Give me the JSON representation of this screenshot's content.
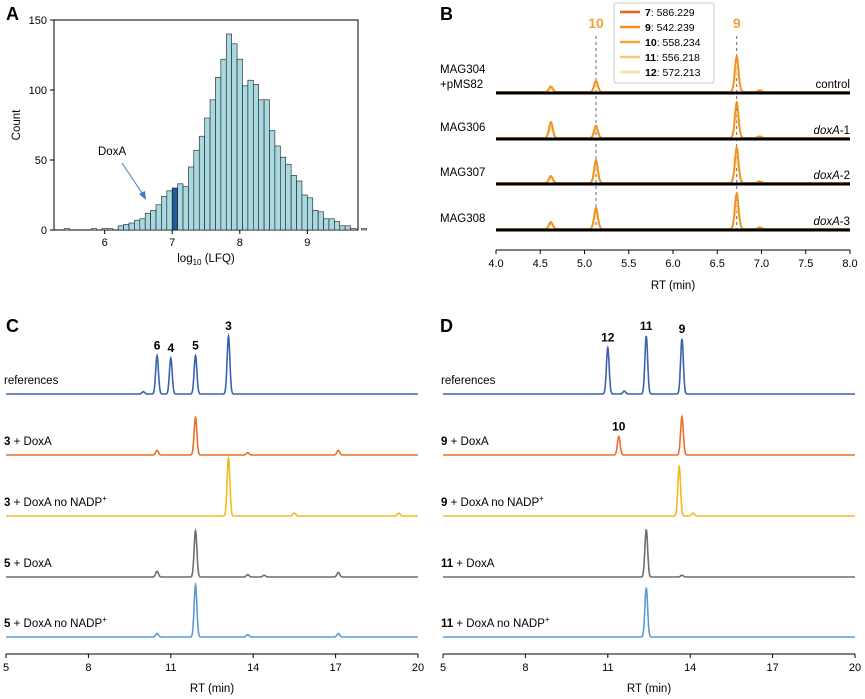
{
  "panels": {
    "A": "A",
    "B": "B",
    "C": "C",
    "D": "D"
  },
  "chart_data": [
    {
      "panel": "A",
      "type": "bar",
      "title": "",
      "xlabel": "log10 (LFQ)",
      "xlabel_main": "log",
      "xlabel_sub": "10",
      "xlabel_rest": " (LFQ)",
      "ylabel": "Count",
      "xlim": [
        5.25,
        9.75
      ],
      "ylim": [
        0,
        150
      ],
      "xticks": [
        "6",
        "7",
        "8",
        "9"
      ],
      "yticks": [
        "0",
        "50",
        "100",
        "150"
      ],
      "bin_start": 5.4,
      "bin_width": 0.08,
      "values": [
        1,
        0,
        0,
        0,
        0,
        1,
        0,
        1,
        1,
        0,
        3,
        4,
        5,
        7,
        8,
        12,
        14,
        18,
        24,
        28,
        30,
        33,
        31,
        45,
        57,
        67,
        80,
        93,
        109,
        122,
        140,
        133,
        122,
        103,
        107,
        104,
        93,
        93,
        71,
        60,
        52,
        47,
        39,
        35,
        25,
        23,
        14,
        13,
        8,
        8,
        6,
        3,
        3,
        1,
        0,
        1
      ],
      "highlight_index": 20,
      "bar_color": "#a8d8e0",
      "highlight_color": "#1f5e99",
      "annotation": {
        "text": "DoxA",
        "x": 6.6,
        "y": 30
      }
    },
    {
      "panel": "B",
      "type": "line",
      "xlabel": "RT (min)",
      "xlim": [
        4.0,
        8.0
      ],
      "xticks": [
        "4.0",
        "4.5",
        "5.0",
        "5.5",
        "6.0",
        "6.5",
        "7.0",
        "7.5",
        "8.0"
      ],
      "vlines": [
        {
          "x": 5.13,
          "label": "10"
        },
        {
          "x": 6.72,
          "label": "9"
        }
      ],
      "annotation_color": "#f0a03a",
      "legend": [
        {
          "id": "7",
          "mz": "586.229",
          "color": "#e8601c"
        },
        {
          "id": "9",
          "mz": "542.239",
          "color": "#f0901e"
        },
        {
          "id": "10",
          "mz": "558.234",
          "color": "#f4a73e"
        },
        {
          "id": "11",
          "mz": "556.218",
          "color": "#f8c97a"
        },
        {
          "id": "12",
          "mz": "572.213",
          "color": "#fbe0a8"
        }
      ],
      "traces": [
        {
          "left": "MAG304",
          "left2": "+pMS82",
          "right": "control",
          "right_italic": false,
          "peaks": [
            {
              "x": 4.62,
              "h": 0.16
            },
            {
              "x": 5.13,
              "h": 0.32
            },
            {
              "x": 6.72,
              "h": 1.0
            },
            {
              "x": 6.98,
              "h": 0.05
            }
          ]
        },
        {
          "left": "MAG306",
          "left2": "",
          "right_it": "doxA",
          "right_tail": "-1",
          "right_italic": true,
          "peaks": [
            {
              "x": 4.62,
              "h": 0.45
            },
            {
              "x": 5.13,
              "h": 0.35
            },
            {
              "x": 6.72,
              "h": 1.0
            },
            {
              "x": 6.98,
              "h": 0.05
            }
          ]
        },
        {
          "left": "MAG307",
          "left2": "",
          "right_it": "doxA",
          "right_tail": "-2",
          "right_italic": true,
          "peaks": [
            {
              "x": 4.62,
              "h": 0.2
            },
            {
              "x": 5.13,
              "h": 0.65
            },
            {
              "x": 6.72,
              "h": 1.0
            },
            {
              "x": 6.98,
              "h": 0.05
            }
          ]
        },
        {
          "left": "MAG308",
          "left2": "",
          "right_it": "doxA",
          "right_tail": "-3",
          "right_italic": true,
          "peaks": [
            {
              "x": 4.62,
              "h": 0.2
            },
            {
              "x": 5.13,
              "h": 0.6
            },
            {
              "x": 6.72,
              "h": 1.0
            },
            {
              "x": 6.98,
              "h": 0.05
            }
          ]
        }
      ]
    },
    {
      "panel": "C",
      "type": "line",
      "xlabel": "RT (min)",
      "xlim": [
        5,
        20
      ],
      "xticks": [
        "5",
        "8",
        "11",
        "14",
        "17",
        "20"
      ],
      "peak_labels": [
        {
          "x": 10.5,
          "label": "6"
        },
        {
          "x": 11.0,
          "label": "4"
        },
        {
          "x": 11.9,
          "label": "5"
        },
        {
          "x": 13.1,
          "label": "3"
        }
      ],
      "traces": [
        {
          "bold": "",
          "text": "references",
          "sup": "",
          "color": "#3b62b0",
          "peaks": [
            {
              "x": 10.0,
              "h": 0.04
            },
            {
              "x": 10.5,
              "h": 0.66
            },
            {
              "x": 11.0,
              "h": 0.62
            },
            {
              "x": 11.9,
              "h": 0.66
            },
            {
              "x": 13.1,
              "h": 1.0
            }
          ]
        },
        {
          "bold": "3",
          "text": " + DoxA",
          "sup": "",
          "color": "#e8702a",
          "peaks": [
            {
              "x": 10.5,
              "h": 0.08
            },
            {
              "x": 11.9,
              "h": 0.65
            },
            {
              "x": 13.8,
              "h": 0.04
            },
            {
              "x": 17.1,
              "h": 0.08
            }
          ]
        },
        {
          "bold": "3",
          "text": " + DoxA no NADP",
          "sup": "+",
          "color": "#f2bb1d",
          "peaks": [
            {
              "x": 13.1,
              "h": 1.0
            },
            {
              "x": 15.5,
              "h": 0.05
            },
            {
              "x": 19.3,
              "h": 0.05
            }
          ]
        },
        {
          "bold": "5",
          "text": " + DoxA",
          "sup": "",
          "color": "#6e6e6e",
          "peaks": [
            {
              "x": 10.5,
              "h": 0.1
            },
            {
              "x": 11.9,
              "h": 0.8
            },
            {
              "x": 13.8,
              "h": 0.04
            },
            {
              "x": 14.4,
              "h": 0.03
            },
            {
              "x": 17.1,
              "h": 0.08
            }
          ]
        },
        {
          "bold": "5",
          "text": " + DoxA no NADP",
          "sup": "+",
          "color": "#5b9bd5",
          "peaks": [
            {
              "x": 10.5,
              "h": 0.06
            },
            {
              "x": 11.9,
              "h": 0.9
            },
            {
              "x": 13.8,
              "h": 0.04
            },
            {
              "x": 17.1,
              "h": 0.06
            }
          ]
        }
      ]
    },
    {
      "panel": "D",
      "type": "line",
      "xlabel": "RT (min)",
      "xlim": [
        5,
        20
      ],
      "xticks": [
        "5",
        "8",
        "11",
        "14",
        "17",
        "20"
      ],
      "peak_labels": [
        {
          "x": 11.0,
          "label": "12",
          "trace": 0
        },
        {
          "x": 12.4,
          "label": "11",
          "trace": 0
        },
        {
          "x": 13.7,
          "label": "9",
          "trace": 0
        },
        {
          "x": 11.4,
          "label": "10",
          "trace": 1
        }
      ],
      "traces": [
        {
          "bold": "",
          "text": "references",
          "sup": "",
          "color": "#3b62b0",
          "peaks": [
            {
              "x": 11.0,
              "h": 0.8
            },
            {
              "x": 11.6,
              "h": 0.05
            },
            {
              "x": 12.4,
              "h": 1.0
            },
            {
              "x": 13.7,
              "h": 0.95
            }
          ]
        },
        {
          "bold": "9",
          "text": " + DoxA",
          "sup": "",
          "color": "#e8702a",
          "peaks": [
            {
              "x": 11.4,
              "h": 0.32
            },
            {
              "x": 13.7,
              "h": 0.66
            }
          ]
        },
        {
          "bold": "9",
          "text": " + DoxA no NADP",
          "sup": "+",
          "color": "#f2bb1d",
          "peaks": [
            {
              "x": 13.6,
              "h": 0.85
            },
            {
              "x": 14.1,
              "h": 0.05
            }
          ]
        },
        {
          "bold": "11",
          "text": " + DoxA",
          "sup": "",
          "color": "#6e6e6e",
          "peaks": [
            {
              "x": 12.4,
              "h": 0.82
            },
            {
              "x": 13.7,
              "h": 0.03
            }
          ]
        },
        {
          "bold": "11",
          "text": " + DoxA no NADP",
          "sup": "+",
          "color": "#5b9bd5",
          "peaks": [
            {
              "x": 12.4,
              "h": 0.85
            }
          ]
        }
      ]
    }
  ]
}
